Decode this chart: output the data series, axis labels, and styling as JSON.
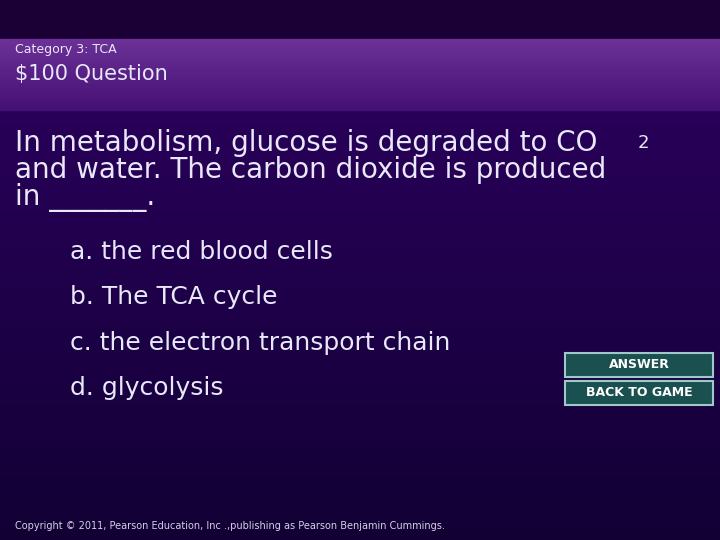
{
  "header_line1": "Category 3: TCA",
  "header_line2": "$100 Question",
  "header_dark_color": "#1a0035",
  "header_purple_color": "#6b3090",
  "body_bg_dark": "#1a0040",
  "body_bg_light": "#2e0060",
  "text_color": "#e8e8f8",
  "question_line1": "In metabolism, glucose is degraded to CO",
  "question_line1_sub": "2",
  "question_line2": "and water. The carbon dioxide is produced",
  "question_line3": "in _______.",
  "answers": [
    "a. the red blood cells",
    "b. The TCA cycle",
    "c. the electron transport chain",
    "d. glycolysis"
  ],
  "button_answer": "ANSWER",
  "button_back": "BACK TO GAME",
  "button_bg": "#1a5050",
  "button_border": "#a0c8c8",
  "button_text": "#ffffff",
  "copyright": "Copyright © 2011, Pearson Education, Inc .,publishing as Pearson Benjamin Cummings.",
  "header_line1_fontsize": 9,
  "header_line2_fontsize": 15,
  "question_fontsize": 20,
  "answer_fontsize": 18,
  "copyright_fontsize": 7
}
